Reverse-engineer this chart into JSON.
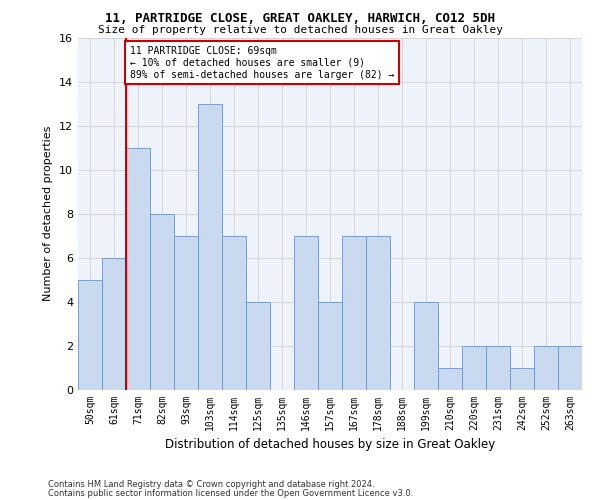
{
  "title_line1": "11, PARTRIDGE CLOSE, GREAT OAKLEY, HARWICH, CO12 5DH",
  "title_line2": "Size of property relative to detached houses in Great Oakley",
  "xlabel": "Distribution of detached houses by size in Great Oakley",
  "ylabel": "Number of detached properties",
  "categories": [
    "50sqm",
    "61sqm",
    "71sqm",
    "82sqm",
    "93sqm",
    "103sqm",
    "114sqm",
    "125sqm",
    "135sqm",
    "146sqm",
    "157sqm",
    "167sqm",
    "178sqm",
    "188sqm",
    "199sqm",
    "210sqm",
    "220sqm",
    "231sqm",
    "242sqm",
    "252sqm",
    "263sqm"
  ],
  "values": [
    5,
    6,
    11,
    8,
    7,
    13,
    7,
    4,
    0,
    7,
    4,
    7,
    7,
    0,
    4,
    1,
    2,
    2,
    1,
    2,
    2
  ],
  "bar_color": "#c9d9f0",
  "bar_edge_color": "#7094c4",
  "property_line_color": "#cc0000",
  "annotation_text": "11 PARTRIDGE CLOSE: 69sqm\n← 10% of detached houses are smaller (9)\n89% of semi-detached houses are larger (82) →",
  "annotation_box_color": "#cc0000",
  "ylim": [
    0,
    16
  ],
  "yticks": [
    0,
    2,
    4,
    6,
    8,
    10,
    12,
    14,
    16
  ],
  "grid_color": "#cccccc",
  "background_color": "#eef2fb",
  "footer_line1": "Contains HM Land Registry data © Crown copyright and database right 2024.",
  "footer_line2": "Contains public sector information licensed under the Open Government Licence v3.0."
}
